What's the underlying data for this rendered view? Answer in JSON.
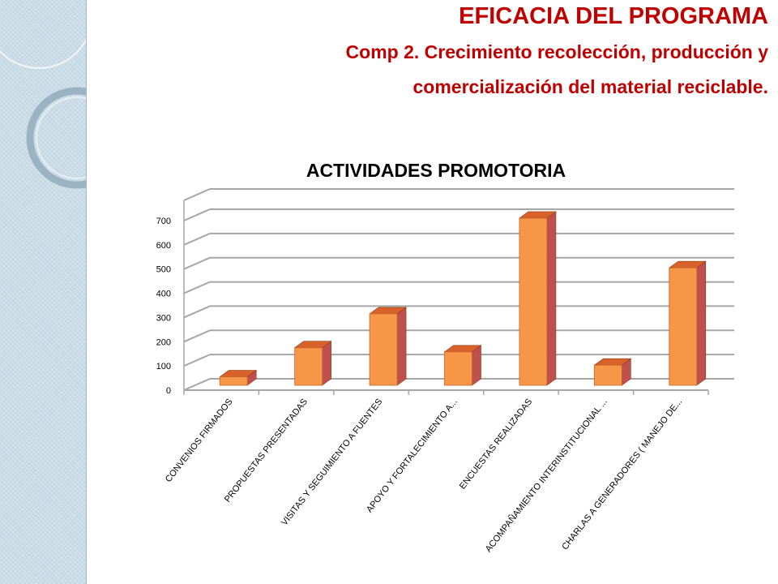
{
  "slide": {
    "title": "EFICACIA DEL PROGRAMA",
    "subtitle_line1": "Comp 2. Crecimiento recolección, producción y",
    "subtitle_line2": "comercialización del material reciclable."
  },
  "colors": {
    "title": "#c00000",
    "bar_front": "#f79646",
    "bar_side": "#c0504d",
    "sidebar": "#c4d7e3"
  },
  "chart_data": {
    "type": "bar",
    "title": "ACTIVIDADES PROMOTORIA",
    "categories": [
      "CONVENIOS FIRMADOS",
      "PROPUESTAS PRESENTADAS",
      "VISITAS Y SEGUIMIENTO  A FUENTES",
      "APOYO Y FORTALECIMIENTO  A...",
      "ENCUESTAS  REALIZADAS",
      "ACOMPAÑAMIENTO  INTERINSTITUCIONAL ...",
      "CHARLAS A GENERADORES  ( MANEJO DE..."
    ],
    "values": [
      35,
      155,
      295,
      138,
      690,
      83,
      485
    ],
    "ylim": [
      0,
      700
    ],
    "yticks": [
      0,
      100,
      200,
      300,
      400,
      500,
      600,
      700
    ],
    "xlabel": "",
    "ylabel": "",
    "grid": true,
    "legend": "none",
    "style": "3d"
  }
}
